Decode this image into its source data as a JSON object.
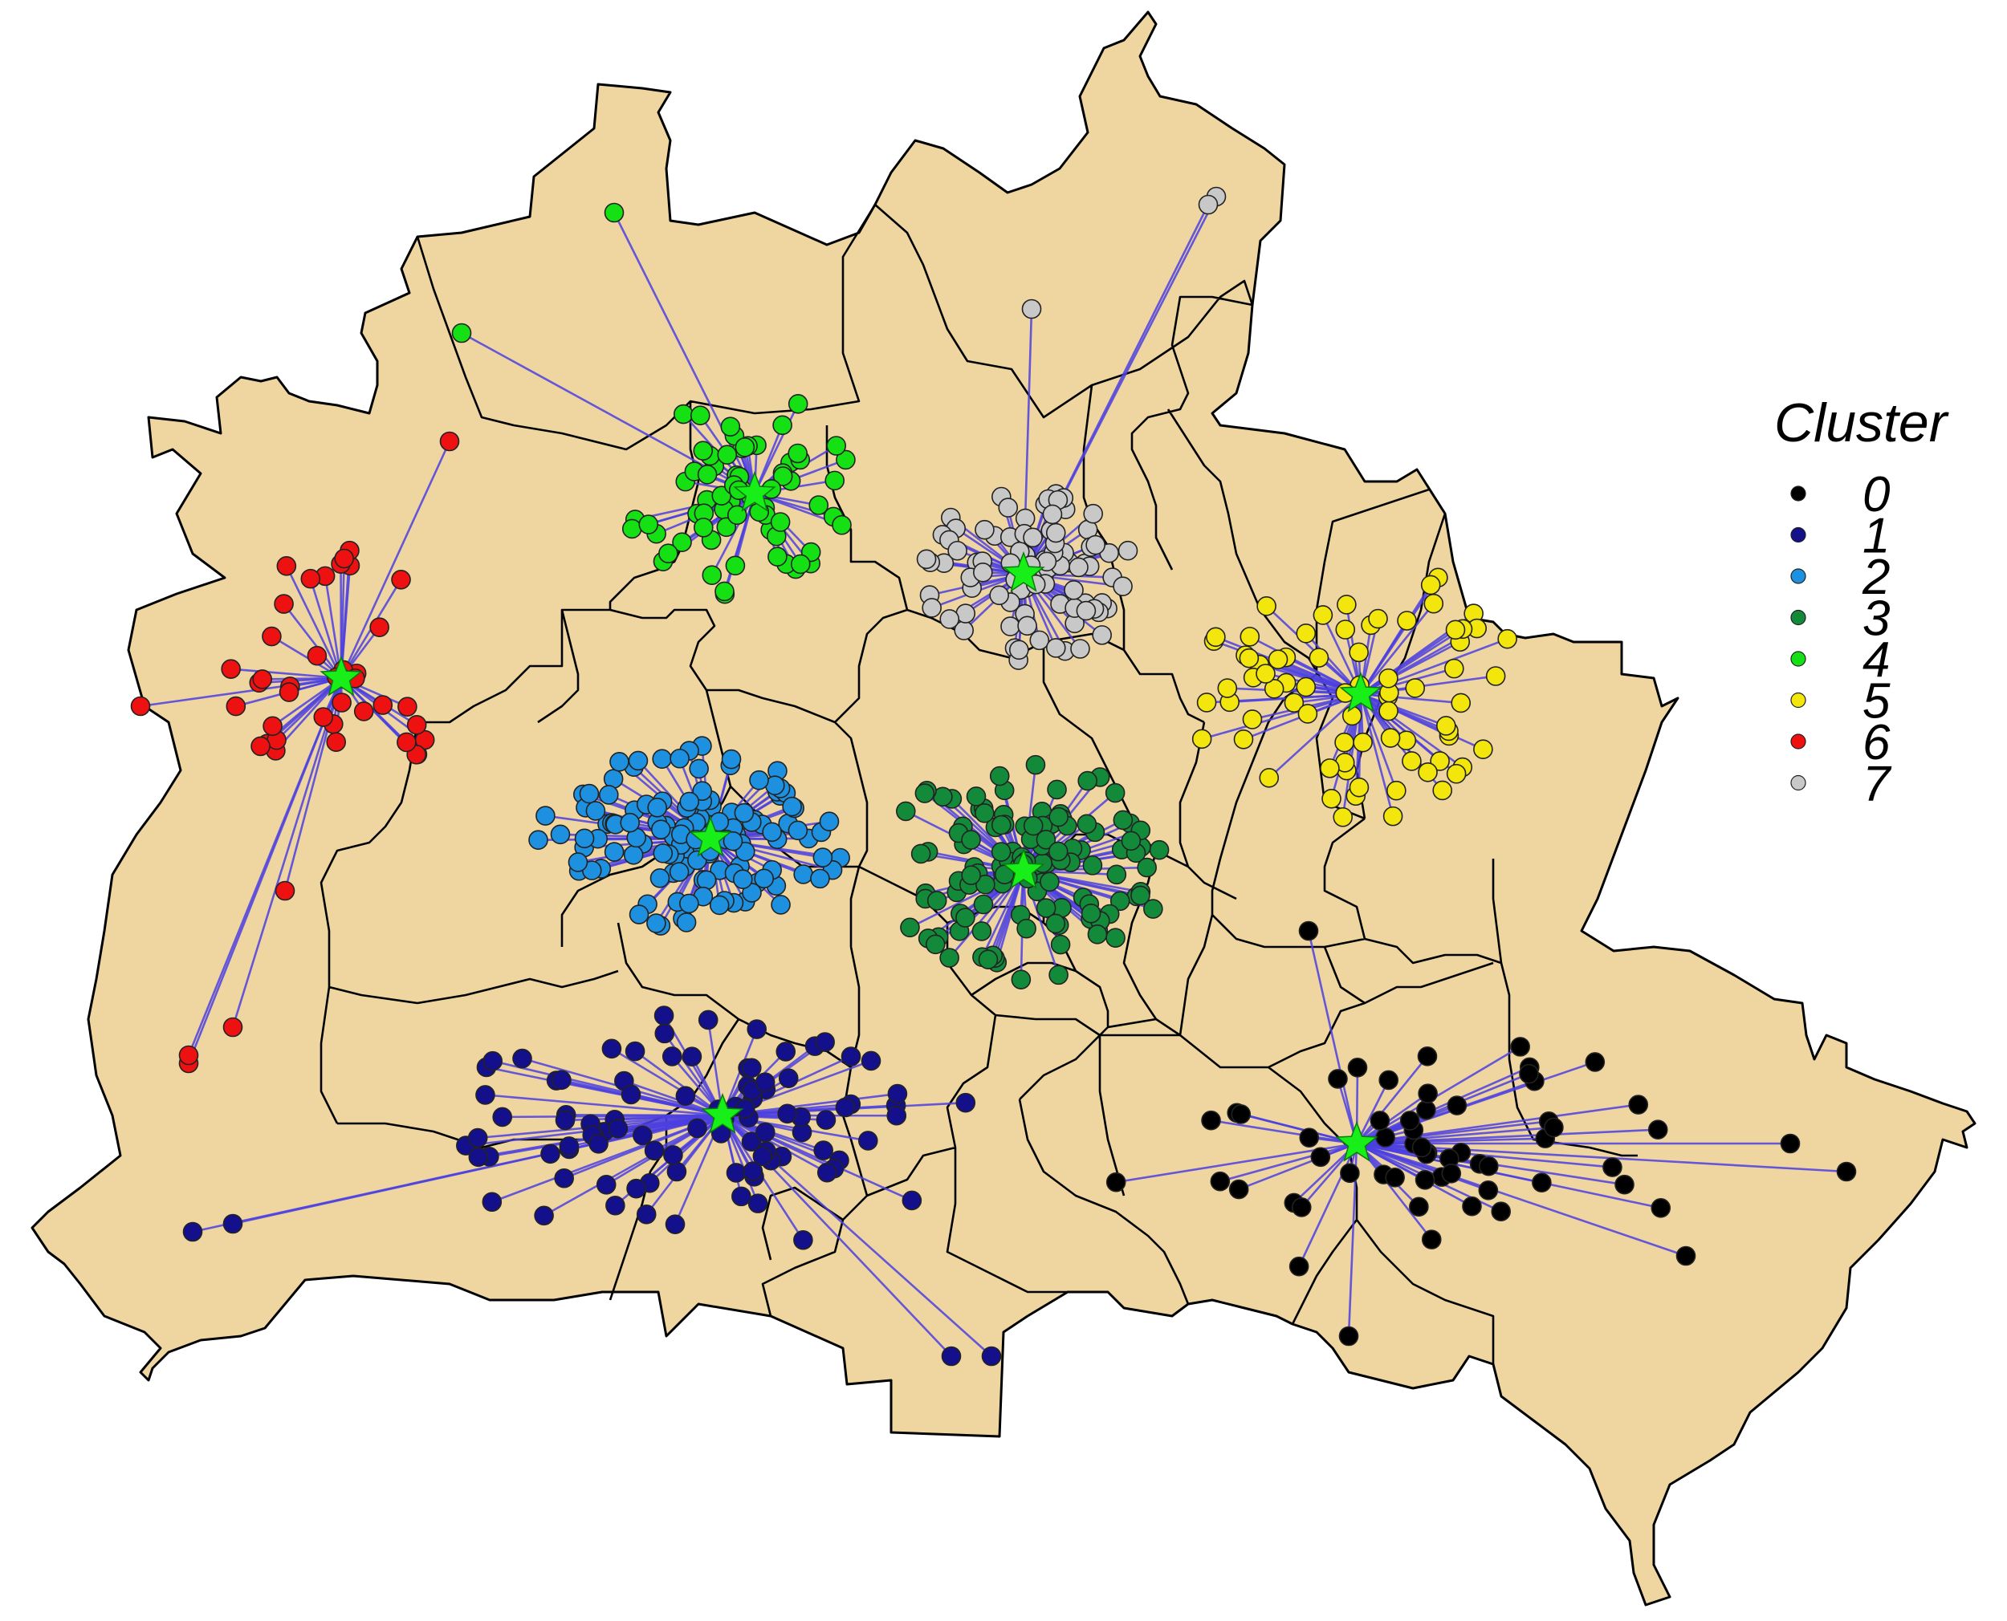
{
  "legend": {
    "title": "Cluster",
    "items": [
      {
        "label": "0",
        "color": "#000000"
      },
      {
        "label": "1",
        "color": "#14108c"
      },
      {
        "label": "2",
        "color": "#1e90e0"
      },
      {
        "label": "3",
        "color": "#128a3a"
      },
      {
        "label": "4",
        "color": "#14e014"
      },
      {
        "label": "5",
        "color": "#f2e60c"
      },
      {
        "label": "6",
        "color": "#ee1111"
      },
      {
        "label": "7",
        "color": "#c8c8c8"
      }
    ]
  },
  "map": {
    "fill_color": "#efd6a0",
    "border_color": "#000000",
    "spoke_color": "#4b3fe0",
    "center_color": "#18ee18",
    "center_icon": "star-icon"
  }
}
